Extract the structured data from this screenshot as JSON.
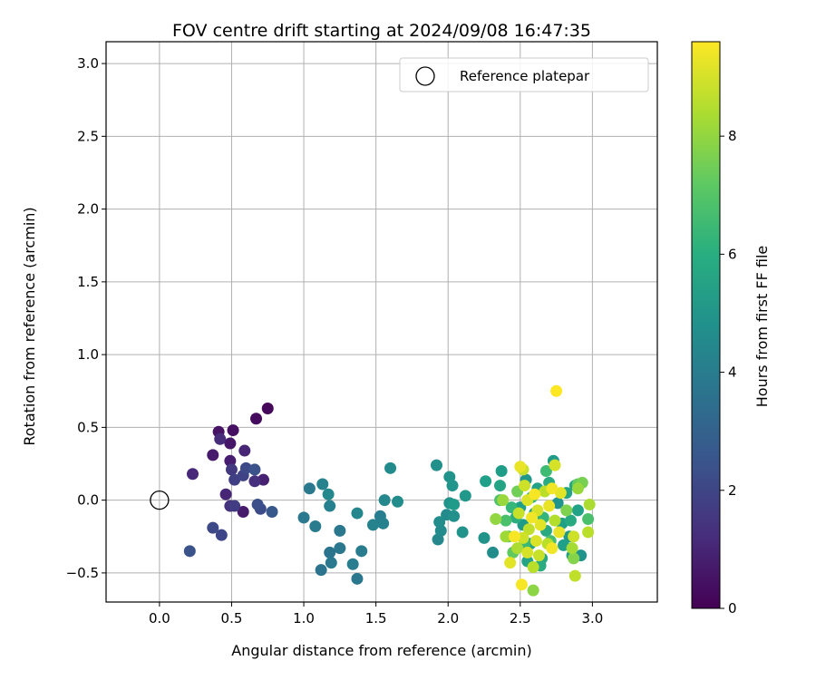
{
  "chart_data": {
    "type": "scatter",
    "title": "FOV centre drift starting at 2024/09/08 16:47:35",
    "xlabel": "Angular distance from reference (arcmin)",
    "ylabel": "Rotation from reference (arcmin)",
    "xlim": [
      -0.37,
      3.45
    ],
    "ylim": [
      -0.7,
      3.15
    ],
    "xticks": [
      "0.0",
      "0.5",
      "1.0",
      "1.5",
      "2.0",
      "2.5",
      "3.0"
    ],
    "yticks": [
      "−0.5",
      "0.0",
      "0.5",
      "1.0",
      "1.5",
      "2.0",
      "2.5",
      "3.0"
    ],
    "grid": true,
    "legend": {
      "placement": "top-right",
      "entries": [
        "Reference platepar"
      ]
    },
    "reference_point": {
      "x": 0.0,
      "y": 0.0
    },
    "colorbar": {
      "label": "Hours from first FF file",
      "range": [
        0,
        9.6
      ],
      "ticks": [
        "0",
        "2",
        "4",
        "6",
        "8"
      ],
      "colormap": "viridis"
    },
    "points": [
      {
        "x": 0.75,
        "y": 0.63,
        "h": 0.2
      },
      {
        "x": 0.67,
        "y": 0.56,
        "h": 0.3
      },
      {
        "x": 0.41,
        "y": 0.47,
        "h": 0.5
      },
      {
        "x": 0.51,
        "y": 0.48,
        "h": 0.4
      },
      {
        "x": 0.49,
        "y": 0.39,
        "h": 0.6
      },
      {
        "x": 0.37,
        "y": 0.31,
        "h": 0.7
      },
      {
        "x": 0.42,
        "y": 0.42,
        "h": 1.2
      },
      {
        "x": 0.59,
        "y": 0.34,
        "h": 1.0
      },
      {
        "x": 0.49,
        "y": 0.27,
        "h": 0.8
      },
      {
        "x": 0.23,
        "y": 0.18,
        "h": 1.1
      },
      {
        "x": 0.5,
        "y": 0.21,
        "h": 1.6
      },
      {
        "x": 0.6,
        "y": 0.22,
        "h": 2.1
      },
      {
        "x": 0.66,
        "y": 0.21,
        "h": 2.4
      },
      {
        "x": 0.58,
        "y": 0.17,
        "h": 1.9
      },
      {
        "x": 0.52,
        "y": 0.14,
        "h": 1.8
      },
      {
        "x": 0.66,
        "y": 0.13,
        "h": 1.3
      },
      {
        "x": 0.72,
        "y": 0.14,
        "h": 0.9
      },
      {
        "x": 0.46,
        "y": 0.04,
        "h": 1.0
      },
      {
        "x": 0.49,
        "y": -0.04,
        "h": 1.4
      },
      {
        "x": 0.52,
        "y": -0.04,
        "h": 1.7
      },
      {
        "x": 0.68,
        "y": -0.03,
        "h": 2.3
      },
      {
        "x": 0.7,
        "y": -0.06,
        "h": 2.2
      },
      {
        "x": 0.78,
        "y": -0.08,
        "h": 2.6
      },
      {
        "x": 0.58,
        "y": -0.08,
        "h": 0.7
      },
      {
        "x": 0.37,
        "y": -0.19,
        "h": 2.1
      },
      {
        "x": 0.43,
        "y": -0.24,
        "h": 2.0
      },
      {
        "x": 0.21,
        "y": -0.35,
        "h": 2.5
      },
      {
        "x": 1.04,
        "y": 0.08,
        "h": 3.9
      },
      {
        "x": 1.13,
        "y": 0.11,
        "h": 4.3
      },
      {
        "x": 1.17,
        "y": 0.04,
        "h": 4.5
      },
      {
        "x": 1.18,
        "y": -0.04,
        "h": 4.2
      },
      {
        "x": 1.0,
        "y": -0.12,
        "h": 3.9
      },
      {
        "x": 1.08,
        "y": -0.18,
        "h": 4.0
      },
      {
        "x": 1.25,
        "y": -0.21,
        "h": 3.8
      },
      {
        "x": 1.37,
        "y": -0.09,
        "h": 4.4
      },
      {
        "x": 1.53,
        "y": -0.11,
        "h": 4.1
      },
      {
        "x": 1.55,
        "y": -0.16,
        "h": 4.2
      },
      {
        "x": 1.48,
        "y": -0.17,
        "h": 4.3
      },
      {
        "x": 1.56,
        "y": 0.0,
        "h": 4.5
      },
      {
        "x": 1.65,
        "y": -0.01,
        "h": 4.7
      },
      {
        "x": 1.6,
        "y": 0.22,
        "h": 4.6
      },
      {
        "x": 1.18,
        "y": -0.36,
        "h": 3.7
      },
      {
        "x": 1.25,
        "y": -0.33,
        "h": 3.8
      },
      {
        "x": 1.4,
        "y": -0.35,
        "h": 4.0
      },
      {
        "x": 1.19,
        "y": -0.43,
        "h": 3.9
      },
      {
        "x": 1.12,
        "y": -0.48,
        "h": 3.7
      },
      {
        "x": 1.34,
        "y": -0.44,
        "h": 4.1
      },
      {
        "x": 1.37,
        "y": -0.54,
        "h": 3.8
      },
      {
        "x": 1.92,
        "y": 0.24,
        "h": 4.8
      },
      {
        "x": 2.01,
        "y": 0.16,
        "h": 4.9
      },
      {
        "x": 2.03,
        "y": 0.1,
        "h": 5.0
      },
      {
        "x": 2.12,
        "y": 0.03,
        "h": 5.1
      },
      {
        "x": 2.01,
        "y": -0.02,
        "h": 4.9
      },
      {
        "x": 2.04,
        "y": -0.03,
        "h": 5.2
      },
      {
        "x": 1.99,
        "y": -0.1,
        "h": 4.6
      },
      {
        "x": 2.04,
        "y": -0.11,
        "h": 4.8
      },
      {
        "x": 1.94,
        "y": -0.15,
        "h": 4.7
      },
      {
        "x": 1.95,
        "y": -0.21,
        "h": 4.6
      },
      {
        "x": 2.1,
        "y": -0.22,
        "h": 4.9
      },
      {
        "x": 1.93,
        "y": -0.27,
        "h": 4.5
      },
      {
        "x": 2.26,
        "y": 0.13,
        "h": 5.4
      },
      {
        "x": 2.37,
        "y": 0.2,
        "h": 5.3
      },
      {
        "x": 2.36,
        "y": 0.1,
        "h": 5.6
      },
      {
        "x": 2.25,
        "y": -0.26,
        "h": 4.9
      },
      {
        "x": 2.31,
        "y": -0.36,
        "h": 4.7
      },
      {
        "x": 2.36,
        "y": 0.0,
        "h": 6.9
      },
      {
        "x": 2.4,
        "y": -0.14,
        "h": 6.8
      },
      {
        "x": 2.42,
        "y": -0.25,
        "h": 7.0
      },
      {
        "x": 2.45,
        "y": -0.36,
        "h": 7.2
      },
      {
        "x": 2.48,
        "y": 0.06,
        "h": 7.5
      },
      {
        "x": 2.5,
        "y": -0.05,
        "h": 5.4
      },
      {
        "x": 2.52,
        "y": -0.17,
        "h": 5.2
      },
      {
        "x": 2.54,
        "y": 0.14,
        "h": 5.1
      },
      {
        "x": 2.57,
        "y": -0.3,
        "h": 5.6
      },
      {
        "x": 2.6,
        "y": -0.09,
        "h": 5.3
      },
      {
        "x": 2.62,
        "y": 0.08,
        "h": 5.5
      },
      {
        "x": 2.65,
        "y": -0.4,
        "h": 5.7
      },
      {
        "x": 2.68,
        "y": -0.21,
        "h": 5.8
      },
      {
        "x": 2.7,
        "y": 0.12,
        "h": 5.9
      },
      {
        "x": 2.73,
        "y": 0.27,
        "h": 5.2
      },
      {
        "x": 2.76,
        "y": -0.02,
        "h": 5.0
      },
      {
        "x": 2.79,
        "y": -0.16,
        "h": 5.4
      },
      {
        "x": 2.82,
        "y": 0.05,
        "h": 5.6
      },
      {
        "x": 2.84,
        "y": -0.25,
        "h": 5.1
      },
      {
        "x": 2.86,
        "y": -0.38,
        "h": 5.3
      },
      {
        "x": 2.88,
        "y": 0.1,
        "h": 5.7
      },
      {
        "x": 2.9,
        "y": -0.07,
        "h": 5.5
      },
      {
        "x": 2.92,
        "y": -0.38,
        "h": 5.0
      },
      {
        "x": 2.85,
        "y": -0.14,
        "h": 5.8
      },
      {
        "x": 2.8,
        "y": -0.31,
        "h": 5.4
      },
      {
        "x": 2.64,
        "y": -0.45,
        "h": 5.9
      },
      {
        "x": 2.55,
        "y": -0.42,
        "h": 5.6
      },
      {
        "x": 2.47,
        "y": -0.12,
        "h": 6.0
      },
      {
        "x": 2.58,
        "y": 0.02,
        "h": 6.2
      },
      {
        "x": 2.66,
        "y": -0.12,
        "h": 6.3
      },
      {
        "x": 2.44,
        "y": -0.05,
        "h": 6.4
      },
      {
        "x": 2.68,
        "y": 0.2,
        "h": 6.6
      },
      {
        "x": 2.53,
        "y": -0.3,
        "h": 6.5
      },
      {
        "x": 2.71,
        "y": -0.28,
        "h": 6.7
      },
      {
        "x": 2.9,
        "y": 0.11,
        "h": 7.3
      },
      {
        "x": 2.93,
        "y": 0.12,
        "h": 7.6
      },
      {
        "x": 2.97,
        "y": -0.13,
        "h": 6.8
      },
      {
        "x": 2.98,
        "y": -0.03,
        "h": 8.4
      },
      {
        "x": 2.97,
        "y": -0.22,
        "h": 8.6
      },
      {
        "x": 2.87,
        "y": -0.25,
        "h": 8.9
      },
      {
        "x": 2.86,
        "y": -0.33,
        "h": 8.3
      },
      {
        "x": 2.87,
        "y": -0.4,
        "h": 7.8
      },
      {
        "x": 2.88,
        "y": -0.52,
        "h": 8.7
      },
      {
        "x": 2.59,
        "y": -0.62,
        "h": 7.9
      },
      {
        "x": 2.5,
        "y": 0.23,
        "h": 9.3
      },
      {
        "x": 2.52,
        "y": 0.21,
        "h": 8.8
      },
      {
        "x": 2.74,
        "y": 0.24,
        "h": 9.0
      },
      {
        "x": 2.72,
        "y": 0.08,
        "h": 9.4
      },
      {
        "x": 2.78,
        "y": 0.05,
        "h": 9.2
      },
      {
        "x": 2.6,
        "y": 0.04,
        "h": 9.5
      },
      {
        "x": 2.55,
        "y": 0.0,
        "h": 9.1
      },
      {
        "x": 2.53,
        "y": 0.1,
        "h": 8.9
      },
      {
        "x": 2.67,
        "y": 0.06,
        "h": 8.6
      },
      {
        "x": 2.7,
        "y": -0.04,
        "h": 9.3
      },
      {
        "x": 2.62,
        "y": -0.07,
        "h": 9.0
      },
      {
        "x": 2.49,
        "y": -0.09,
        "h": 8.8
      },
      {
        "x": 2.58,
        "y": -0.12,
        "h": 9.4
      },
      {
        "x": 2.74,
        "y": -0.14,
        "h": 8.5
      },
      {
        "x": 2.64,
        "y": -0.17,
        "h": 9.2
      },
      {
        "x": 2.56,
        "y": -0.2,
        "h": 8.7
      },
      {
        "x": 2.46,
        "y": -0.25,
        "h": 9.5
      },
      {
        "x": 2.4,
        "y": -0.25,
        "h": 8.2
      },
      {
        "x": 2.52,
        "y": -0.26,
        "h": 8.9
      },
      {
        "x": 2.61,
        "y": -0.28,
        "h": 9.1
      },
      {
        "x": 2.69,
        "y": -0.3,
        "h": 8.6
      },
      {
        "x": 2.77,
        "y": -0.22,
        "h": 9.3
      },
      {
        "x": 2.48,
        "y": -0.33,
        "h": 8.4
      },
      {
        "x": 2.55,
        "y": -0.36,
        "h": 9.0
      },
      {
        "x": 2.63,
        "y": -0.38,
        "h": 8.8
      },
      {
        "x": 2.72,
        "y": -0.33,
        "h": 9.4
      },
      {
        "x": 2.43,
        "y": -0.43,
        "h": 9.2
      },
      {
        "x": 2.59,
        "y": -0.46,
        "h": 8.6
      },
      {
        "x": 2.51,
        "y": -0.58,
        "h": 9.5
      },
      {
        "x": 2.75,
        "y": 0.75,
        "h": 9.6
      },
      {
        "x": 2.33,
        "y": -0.13,
        "h": 8.0
      },
      {
        "x": 2.38,
        "y": 0.0,
        "h": 8.1
      },
      {
        "x": 2.82,
        "y": -0.07,
        "h": 7.7
      },
      {
        "x": 2.9,
        "y": 0.08,
        "h": 8.1
      }
    ]
  }
}
